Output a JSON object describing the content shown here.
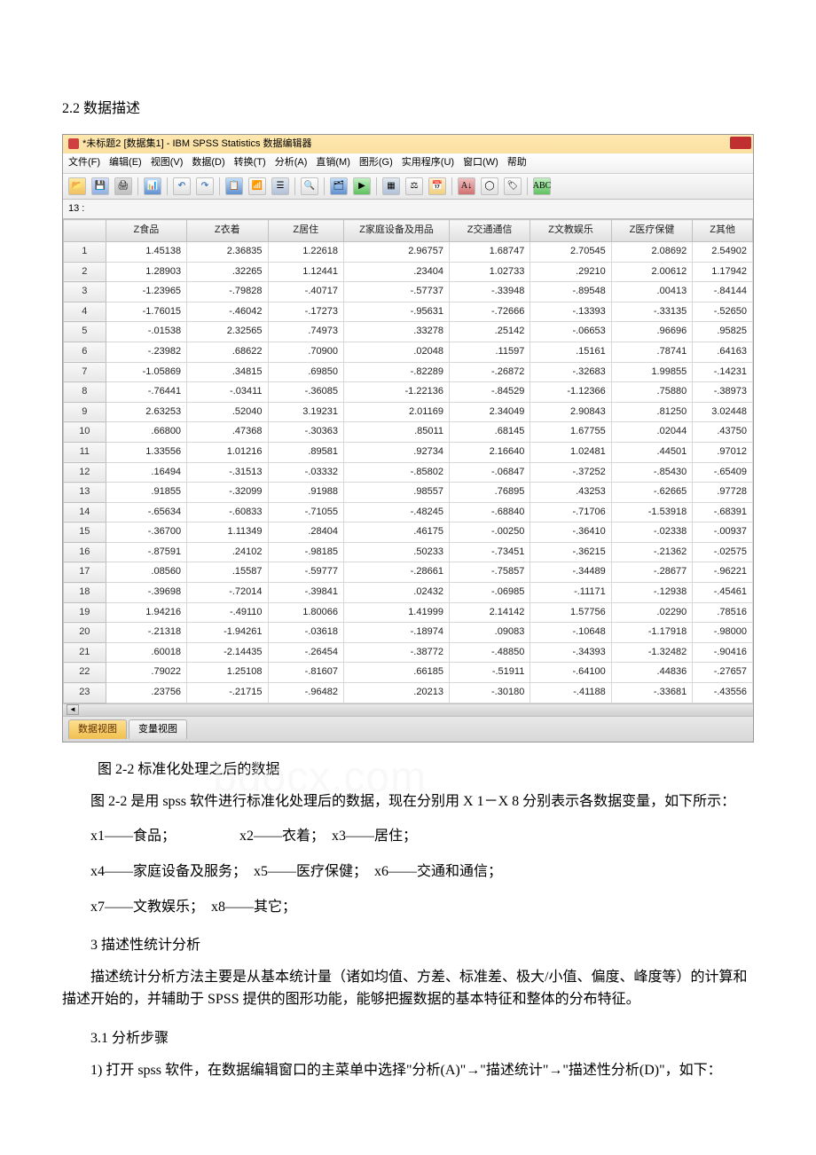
{
  "doc": {
    "section_title": "2.2 数据描述",
    "caption": "图 2-2 标准化处理之后的数据",
    "watermark": "bdocx.com",
    "para1": "图 2-2 是用 spss 软件进行标准化处理后的数据，现在分别用 X 1－X 8 分别表示各数据变量，如下所示：",
    "var1": "x1——食品；　　　　　x2——衣着；　x3——居住；",
    "var2": " x4——家庭设备及服务；　x5——医疗保健；　x6——交通和通信；",
    "var3": "x7——文教娱乐；　x8——其它；",
    "sub1": "3 描述性统计分析",
    "para2": "　　描述统计分析方法主要是从基本统计量（诸如均值、方差、标准差、极大/小值、偏度、峰度等）的计算和描述开始的，并辅助于 SPSS 提供的图形功能，能够把握数据的基本特征和整体的分布特征。",
    "sub2": "3.1 分析步骤",
    "para3": "1) 打开 spss 软件，在数据编辑窗口的主菜单中选择\"分析(A)\"→\"描述统计\"→\"描述性分析(D)\"，如下："
  },
  "spss": {
    "title": "*未标题2 [数据集1] - IBM SPSS Statistics 数据编辑器",
    "menus": [
      "文件(F)",
      "编辑(E)",
      "视图(V)",
      "数据(D)",
      "转换(T)",
      "分析(A)",
      "直销(M)",
      "图形(G)",
      "实用程序(U)",
      "窗口(W)",
      "帮助"
    ],
    "cell_label": "13 :",
    "tabs": {
      "data": "数据视图",
      "var": "变量视图"
    }
  },
  "table": {
    "type": "data-grid",
    "columns": [
      "",
      "Z食品",
      "Z衣着",
      "Z居住",
      "Z家庭设备及用品",
      "Z交通通信",
      "Z文教娱乐",
      "Z医疗保健",
      "Z其他"
    ],
    "column_widths": [
      "48px",
      "92px",
      "92px",
      "86px",
      "120px",
      "92px",
      "92px",
      "92px",
      "68px"
    ],
    "header_bg": "#e8e8e8",
    "cell_bg": "#ffffff",
    "border_color": "#d8d8d8",
    "text_align": "right",
    "font_size": 11,
    "rows": [
      [
        "1.45138",
        "2.36835",
        "1.22618",
        "2.96757",
        "1.68747",
        "2.70545",
        "2.08692",
        "2.54902"
      ],
      [
        "1.28903",
        ".32265",
        "1.12441",
        ".23404",
        "1.02733",
        ".29210",
        "2.00612",
        "1.17942"
      ],
      [
        "-1.23965",
        "-.79828",
        "-.40717",
        "-.57737",
        "-.33948",
        "-.89548",
        ".00413",
        "-.84144"
      ],
      [
        "-1.76015",
        "-.46042",
        "-.17273",
        "-.95631",
        "-.72666",
        "-.13393",
        "-.33135",
        "-.52650"
      ],
      [
        "-.01538",
        "2.32565",
        ".74973",
        ".33278",
        ".25142",
        "-.06653",
        ".96696",
        ".95825"
      ],
      [
        "-.23982",
        ".68622",
        ".70900",
        ".02048",
        ".11597",
        ".15161",
        ".78741",
        ".64163"
      ],
      [
        "-1.05869",
        ".34815",
        ".69850",
        "-.82289",
        "-.26872",
        "-.32683",
        "1.99855",
        "-.14231"
      ],
      [
        "-.76441",
        "-.03411",
        "-.36085",
        "-1.22136",
        "-.84529",
        "-1.12366",
        ".75880",
        "-.38973"
      ],
      [
        "2.63253",
        ".52040",
        "3.19231",
        "2.01169",
        "2.34049",
        "2.90843",
        ".81250",
        "3.02448"
      ],
      [
        ".66800",
        ".47368",
        "-.30363",
        ".85011",
        ".68145",
        "1.67755",
        ".02044",
        ".43750"
      ],
      [
        "1.33556",
        "1.01216",
        ".89581",
        ".92734",
        "2.16640",
        "1.02481",
        ".44501",
        ".97012"
      ],
      [
        ".16494",
        "-.31513",
        "-.03332",
        "-.85802",
        "-.06847",
        "-.37252",
        "-.85430",
        "-.65409"
      ],
      [
        ".91855",
        "-.32099",
        ".91988",
        ".98557",
        ".76895",
        ".43253",
        "-.62665",
        ".97728"
      ],
      [
        "-.65634",
        "-.60833",
        "-.71055",
        "-.48245",
        "-.68840",
        "-.71706",
        "-1.53918",
        "-.68391"
      ],
      [
        "-.36700",
        "1.11349",
        ".28404",
        ".46175",
        "-.00250",
        "-.36410",
        "-.02338",
        "-.00937"
      ],
      [
        "-.87591",
        ".24102",
        "-.98185",
        ".50233",
        "-.73451",
        "-.36215",
        "-.21362",
        "-.02575"
      ],
      [
        ".08560",
        ".15587",
        "-.59777",
        "-.28661",
        "-.75857",
        "-.34489",
        "-.28677",
        "-.96221"
      ],
      [
        "-.39698",
        "-.72014",
        "-.39841",
        ".02432",
        "-.06985",
        "-.11171",
        "-.12938",
        "-.45461"
      ],
      [
        "1.94216",
        "-.49110",
        "1.80066",
        "1.41999",
        "2.14142",
        "1.57756",
        ".02290",
        ".78516"
      ],
      [
        "-.21318",
        "-1.94261",
        "-.03618",
        "-.18974",
        ".09083",
        "-.10648",
        "-1.17918",
        "-.98000"
      ],
      [
        ".60018",
        "-2.14435",
        "-.26454",
        "-.38772",
        "-.48850",
        "-.34393",
        "-1.32482",
        "-.90416"
      ],
      [
        ".79022",
        "1.25108",
        "-.81607",
        ".66185",
        "-.51911",
        "-.64100",
        ".44836",
        "-.27657"
      ],
      [
        ".23756",
        "-.21715",
        "-.96482",
        ".20213",
        "-.30180",
        "-.41188",
        "-.33681",
        "-.43556"
      ]
    ]
  }
}
